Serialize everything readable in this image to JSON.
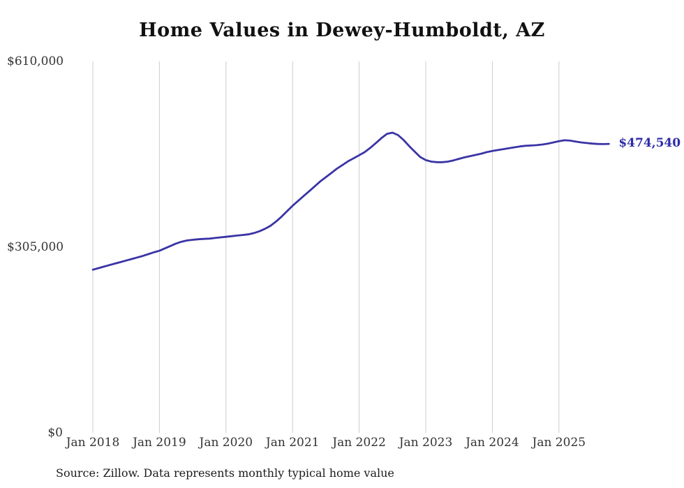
{
  "chart_data": {
    "type": "line",
    "title": "Home Values in Dewey-Humboldt, AZ",
    "xlabel": "",
    "ylabel": "",
    "ylim": [
      0,
      610000
    ],
    "y_tick_labels": [
      "$610,000",
      "$305,000",
      "$0"
    ],
    "y_tick_values": [
      610000,
      305000,
      0
    ],
    "x_tick_labels": [
      "Jan 2018",
      "Jan 2019",
      "Jan 2020",
      "Jan 2021",
      "Jan 2022",
      "Jan 2023",
      "Jan 2024",
      "Jan 2025"
    ],
    "grid": "vertical-only",
    "legend": "none",
    "line_color": "#3a34a5",
    "end_label_color": "#2d2ba6",
    "grid_color": "#cccccc",
    "end_label": "$474,540",
    "final_value": 474540,
    "source": "Source: Zillow. Data represents monthly typical home value",
    "series": [
      {
        "name": "Typical home value",
        "months": [
          "2018-01",
          "2018-02",
          "2018-03",
          "2018-04",
          "2018-05",
          "2018-06",
          "2018-07",
          "2018-08",
          "2018-09",
          "2018-10",
          "2018-11",
          "2018-12",
          "2019-01",
          "2019-02",
          "2019-03",
          "2019-04",
          "2019-05",
          "2019-06",
          "2019-07",
          "2019-08",
          "2019-09",
          "2019-10",
          "2019-11",
          "2019-12",
          "2020-01",
          "2020-02",
          "2020-03",
          "2020-04",
          "2020-05",
          "2020-06",
          "2020-07",
          "2020-08",
          "2020-09",
          "2020-10",
          "2020-11",
          "2020-12",
          "2021-01",
          "2021-02",
          "2021-03",
          "2021-04",
          "2021-05",
          "2021-06",
          "2021-07",
          "2021-08",
          "2021-09",
          "2021-10",
          "2021-11",
          "2021-12",
          "2022-01",
          "2022-02",
          "2022-03",
          "2022-04",
          "2022-05",
          "2022-06",
          "2022-07",
          "2022-08",
          "2022-09",
          "2022-10",
          "2022-11",
          "2022-12",
          "2023-01",
          "2023-02",
          "2023-03",
          "2023-04",
          "2023-05",
          "2023-06",
          "2023-07",
          "2023-08",
          "2023-09",
          "2023-10",
          "2023-11",
          "2023-12",
          "2024-01",
          "2024-02",
          "2024-03",
          "2024-04",
          "2024-05",
          "2024-06",
          "2024-07",
          "2024-08",
          "2024-09",
          "2024-10",
          "2024-11",
          "2024-12",
          "2025-01",
          "2025-02",
          "2025-03",
          "2025-04",
          "2025-05",
          "2025-06",
          "2025-07",
          "2025-08",
          "2025-09",
          "2025-10"
        ],
        "values": [
          268000,
          270500,
          273000,
          275500,
          278000,
          280500,
          283000,
          285500,
          288000,
          290500,
          293500,
          296500,
          299000,
          303000,
          307000,
          311000,
          314000,
          316000,
          317000,
          318000,
          318500,
          319000,
          320000,
          321000,
          322000,
          323000,
          324000,
          325000,
          326000,
          328000,
          331000,
          335000,
          340000,
          347000,
          355000,
          364000,
          373000,
          381000,
          389000,
          397000,
          405000,
          413000,
          420000,
          427000,
          434000,
          440000,
          446000,
          451000,
          456000,
          461000,
          468000,
          476000,
          484000,
          491000,
          493000,
          489000,
          481000,
          471000,
          462000,
          453000,
          448000,
          445500,
          444500,
          444500,
          445500,
          447500,
          450000,
          452500,
          454500,
          456500,
          458500,
          461000,
          463000,
          464500,
          466000,
          467500,
          469000,
          470500,
          471500,
          472000,
          472500,
          473500,
          475000,
          477000,
          479000,
          480500,
          480000,
          478500,
          477000,
          476000,
          475000,
          474500,
          474200,
          474540
        ]
      }
    ]
  }
}
